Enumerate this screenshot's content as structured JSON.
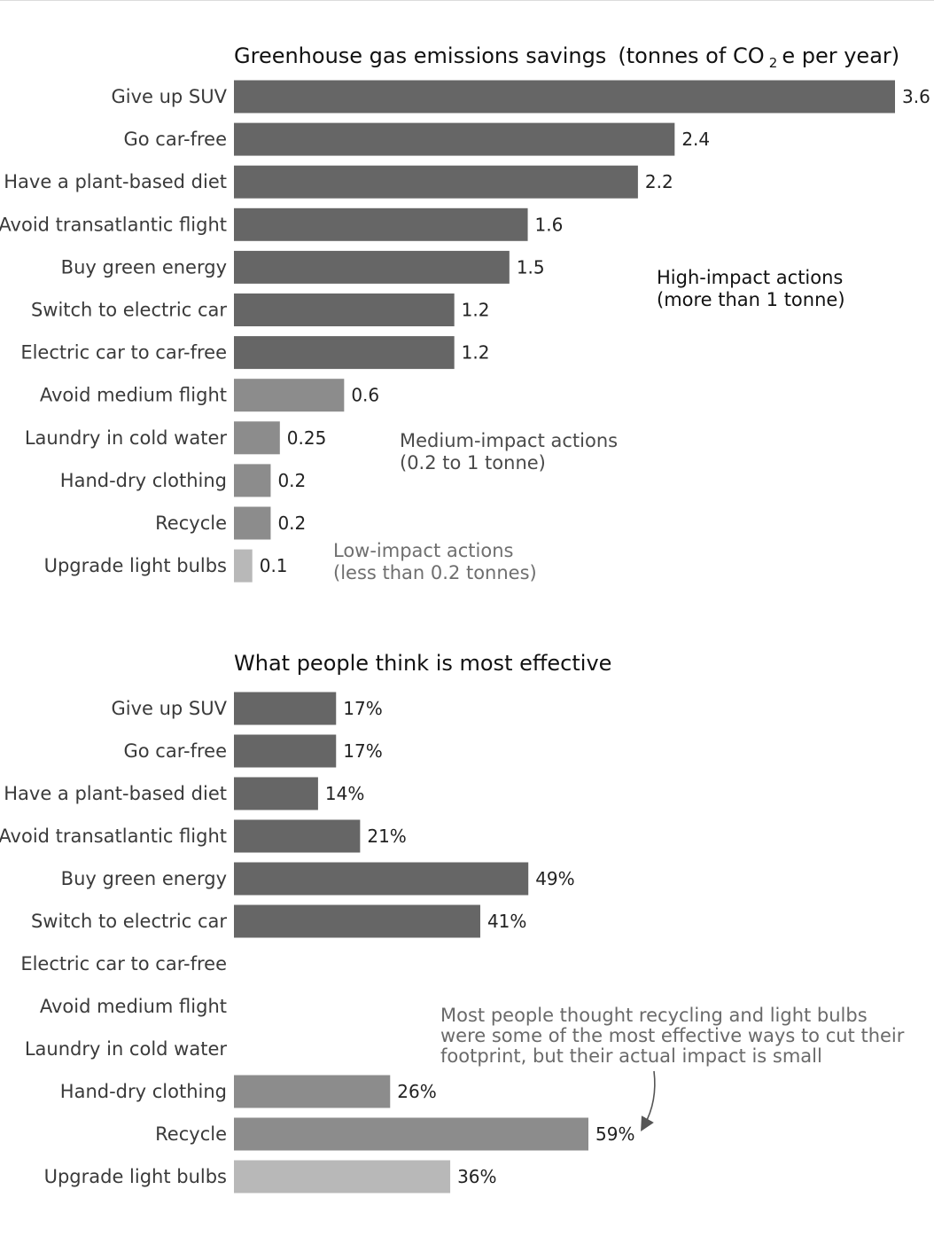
{
  "colors": {
    "high": "#666666",
    "medium": "#8c8c8c",
    "low": "#b8b8b8",
    "note_high": "#111111",
    "note_medium": "#4a4a4a",
    "note_low": "#6f6f6f",
    "annotation": "#6a6a6a"
  },
  "categories": [
    "Give up SUV",
    "Go car-free",
    "Have a plant-based diet",
    "Avoid transatlantic flight",
    "Buy green energy",
    "Switch to electric car",
    "Electric car to car-free",
    "Avoid medium flight",
    "Laundry in cold water",
    "Hand-dry clothing",
    "Recycle",
    "Upgrade light bulbs"
  ],
  "impact_levels": [
    "high",
    "high",
    "high",
    "high",
    "high",
    "high",
    "high",
    "medium",
    "medium",
    "medium",
    "medium",
    "low"
  ],
  "chart_data": [
    {
      "type": "bar",
      "orientation": "horizontal",
      "title": "Greenhouse gas emissions savings",
      "unit_prefix": "(tonnes of CO",
      "unit_sub": "2",
      "unit_suffix": "e per year)",
      "values": [
        3.6,
        2.4,
        2.2,
        1.6,
        1.5,
        1.2,
        1.2,
        0.6,
        0.25,
        0.2,
        0.2,
        0.1
      ],
      "value_labels": [
        "3.6",
        "2.4",
        "2.2",
        "1.6",
        "1.5",
        "1.2",
        "1.2",
        "0.6",
        "0.25",
        "0.2",
        "0.2",
        "0.1"
      ],
      "xlim": [
        0,
        3.6
      ],
      "grid": false,
      "group_notes": [
        {
          "level": "high",
          "lines": [
            "High-impact actions",
            "(more than 1 tonne)"
          ]
        },
        {
          "level": "medium",
          "lines": [
            "Medium-impact actions",
            "(0.2 to 1 tonne)"
          ]
        },
        {
          "level": "low",
          "lines": [
            "Low-impact actions",
            "(less than 0.2 tonnes)"
          ]
        }
      ]
    },
    {
      "type": "bar",
      "orientation": "horizontal",
      "title": "What people think is most effective",
      "values": [
        17,
        17,
        14,
        21,
        49,
        41,
        null,
        null,
        null,
        26,
        59,
        36
      ],
      "value_labels": [
        "17%",
        "17%",
        "14%",
        "21%",
        "49%",
        "41%",
        "",
        "",
        "",
        "26%",
        "59%",
        "36%"
      ],
      "unit": "%",
      "grid": false,
      "annotation": {
        "lines": [
          "Most people thought recycling and light bulbs",
          "were some of the most effective ways to cut their",
          "footprint, but their actual impact is small"
        ],
        "points_to": "Recycle"
      }
    }
  ]
}
